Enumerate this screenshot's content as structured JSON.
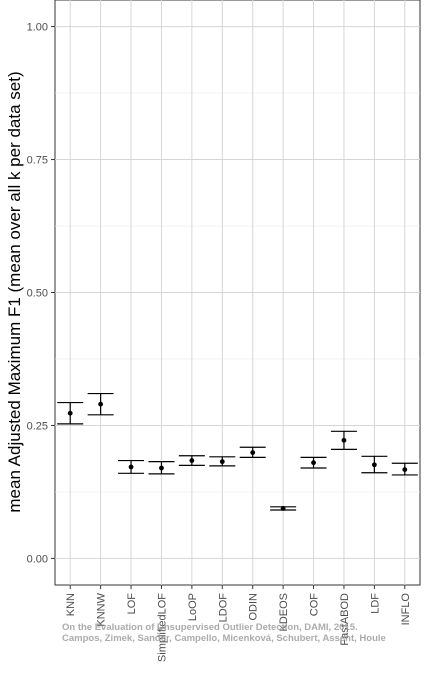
{
  "chart_data": {
    "type": "errorbar",
    "title": "",
    "xlabel": "",
    "ylabel": "mean Adjusted Maximum F1 (mean over all k per data set)",
    "ylim": [
      -0.05,
      1.05
    ],
    "yticks": [
      "0.00",
      "0.25",
      "0.50",
      "0.75",
      "1.00"
    ],
    "grid": true,
    "categories": [
      "KNN",
      "KNNW",
      "LOF",
      "SimplifiedLOF",
      "LoOP",
      "LDOF",
      "ODIN",
      "KDEOS",
      "COF",
      "FastABOD",
      "LDF",
      "INFLO"
    ],
    "series": [
      {
        "mean": [
          0.273,
          0.29,
          0.172,
          0.17,
          0.184,
          0.182,
          0.199,
          0.094,
          0.18,
          0.222,
          0.176,
          0.167
        ],
        "lower": [
          0.253,
          0.27,
          0.16,
          0.159,
          0.175,
          0.174,
          0.19,
          0.091,
          0.17,
          0.205,
          0.161,
          0.157
        ],
        "upper": [
          0.293,
          0.31,
          0.184,
          0.182,
          0.193,
          0.191,
          0.209,
          0.097,
          0.19,
          0.239,
          0.192,
          0.179
        ]
      }
    ]
  },
  "watermark": {
    "line1": "On the Evaluation of Unsupervised Outlier Detection, DAMI, 2015.",
    "line2": "Campos, Zimek, Sander, Campello, Micenková, Schubert, Assent, Houle"
  }
}
